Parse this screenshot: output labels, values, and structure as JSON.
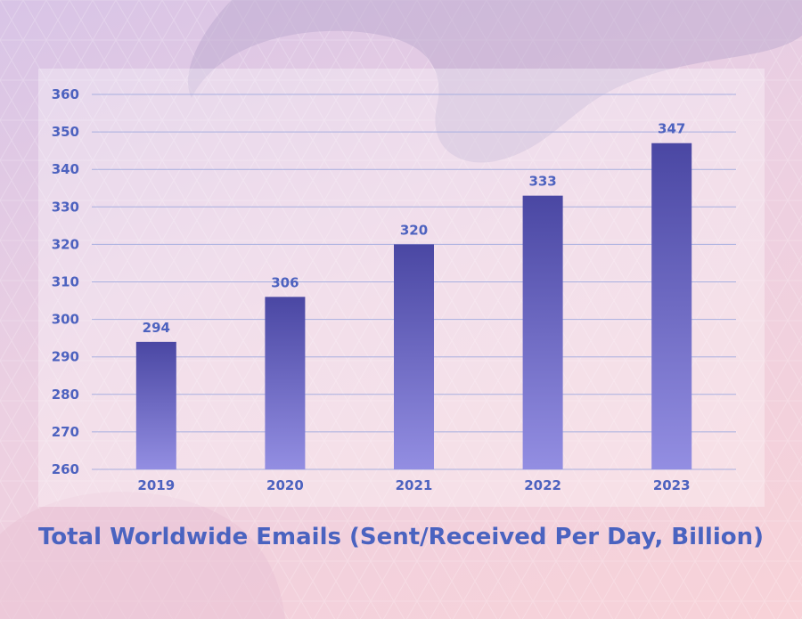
{
  "chart_data": {
    "type": "bar",
    "title": "Total Worldwide Emails (Sent/Received Per Day, Billion)",
    "categories": [
      "2019",
      "2020",
      "2021",
      "2022",
      "2023"
    ],
    "values": [
      294,
      306,
      320,
      333,
      347
    ],
    "data_labels": [
      "294",
      "306",
      "320",
      "333",
      "347"
    ],
    "xlabel": "",
    "ylabel": "",
    "ylim": [
      260,
      360
    ],
    "yticks": [
      260,
      270,
      280,
      290,
      300,
      310,
      320,
      330,
      340,
      350,
      360
    ],
    "grid": true,
    "legend": "none",
    "colors": {
      "bar_top": "#4a47a3",
      "bar_bottom": "#938ee2",
      "gridline": "#a8afe0",
      "text": "#4d62bf"
    }
  }
}
